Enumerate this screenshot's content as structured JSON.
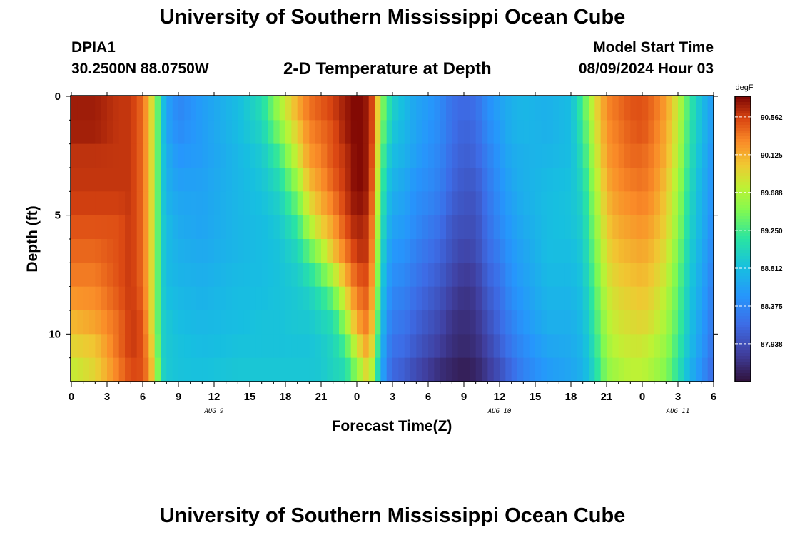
{
  "header": {
    "title": "University of Southern Mississippi Ocean Cube",
    "station": "DPIA1",
    "coords": "30.2500N  88.0750W",
    "subtitle": "2-D Temperature at Depth",
    "start_label": "Model Start Time",
    "start_value": "08/09/2024 Hour 03"
  },
  "footer": {
    "title": "University of Southern Mississippi Ocean Cube"
  },
  "chart_data": {
    "type": "heatmap",
    "title": "2-D Temperature at Depth",
    "xlabel": "Forecast Time(Z)",
    "ylabel": "Depth (ft)",
    "units": "degF",
    "x_range_hours": [
      0,
      54
    ],
    "y_range_ft": [
      0,
      12
    ],
    "y_reversed": true,
    "x_ticks": [
      "0",
      "3",
      "6",
      "9",
      "12",
      "15",
      "18",
      "21",
      "0",
      "3",
      "6",
      "9",
      "12",
      "15",
      "18",
      "21",
      "0",
      "3",
      "6"
    ],
    "y_ticks": [
      "0",
      "5",
      "10"
    ],
    "date_labels": [
      {
        "label": "AUG 9",
        "hour": 12
      },
      {
        "label": "AUG 10",
        "hour": 36
      },
      {
        "label": "AUG 11",
        "hour": 51
      }
    ],
    "colorbar": {
      "min": 87.5,
      "max": 90.8,
      "ticks": [
        "90.562",
        "90.125",
        "89.688",
        "89.250",
        "88.812",
        "88.375",
        "87.938"
      ],
      "tick_values": [
        90.562,
        90.125,
        89.688,
        89.25,
        88.812,
        88.375,
        87.938
      ]
    },
    "profile_hours": [
      0,
      2,
      4,
      5,
      6,
      6.5,
      7,
      7.5,
      8,
      9,
      11,
      14,
      16,
      17.5,
      19,
      20,
      21,
      22,
      23,
      24,
      25,
      25.5,
      26,
      26.5,
      27,
      28,
      29,
      30,
      31,
      32,
      33,
      34,
      35,
      36,
      37,
      38,
      40,
      42,
      43,
      44,
      45,
      46,
      47,
      48,
      49,
      50,
      51,
      52,
      53,
      54
    ],
    "profiles": [
      [
        90.7,
        90.7,
        90.6,
        90.6,
        90.5,
        90.4,
        90.3,
        90.1,
        89.9,
        89.7
      ],
      [
        90.7,
        90.7,
        90.6,
        90.6,
        90.5,
        90.4,
        90.3,
        90.2,
        90.0,
        89.9
      ],
      [
        90.6,
        90.6,
        90.6,
        90.6,
        90.5,
        90.5,
        90.5,
        90.4,
        90.4,
        90.3
      ],
      [
        90.6,
        90.6,
        90.6,
        90.6,
        90.6,
        90.6,
        90.6,
        90.6,
        90.6,
        90.5
      ],
      [
        90.4,
        90.4,
        90.4,
        90.4,
        90.4,
        90.4,
        90.4,
        90.5,
        90.5,
        90.5
      ],
      [
        90.1,
        90.1,
        90.1,
        90.1,
        90.1,
        90.1,
        90.1,
        90.1,
        90.2,
        90.3
      ],
      [
        89.7,
        89.7,
        89.7,
        89.7,
        89.7,
        89.7,
        89.7,
        89.7,
        89.8,
        89.9
      ],
      [
        89.0,
        89.0,
        89.0,
        89.0,
        89.0,
        89.0,
        89.0,
        89.0,
        89.0,
        89.1
      ],
      [
        88.6,
        88.6,
        88.7,
        88.7,
        88.8,
        88.8,
        88.8,
        88.9,
        88.9,
        88.9
      ],
      [
        88.35,
        88.4,
        88.5,
        88.6,
        88.65,
        88.7,
        88.75,
        88.8,
        88.85,
        88.85
      ],
      [
        88.55,
        88.55,
        88.55,
        88.6,
        88.6,
        88.65,
        88.7,
        88.75,
        88.8,
        88.85
      ],
      [
        88.8,
        88.8,
        88.75,
        88.75,
        88.75,
        88.75,
        88.8,
        88.8,
        88.85,
        88.9
      ],
      [
        89.1,
        89.0,
        88.9,
        88.85,
        88.8,
        88.8,
        88.8,
        88.85,
        88.85,
        88.9
      ],
      [
        89.7,
        89.5,
        89.2,
        89.0,
        88.9,
        88.85,
        88.85,
        88.85,
        88.85,
        88.9
      ],
      [
        90.2,
        90.0,
        89.8,
        89.5,
        89.2,
        89.0,
        88.9,
        88.9,
        88.85,
        88.9
      ],
      [
        90.4,
        90.3,
        90.2,
        90.0,
        89.7,
        89.3,
        89.0,
        88.9,
        88.85,
        88.9
      ],
      [
        90.5,
        90.4,
        90.3,
        90.2,
        90.0,
        89.6,
        89.2,
        89.0,
        88.9,
        88.9
      ],
      [
        90.6,
        90.5,
        90.5,
        90.4,
        90.2,
        90.0,
        89.5,
        89.1,
        89.0,
        89.0
      ],
      [
        90.7,
        90.7,
        90.6,
        90.6,
        90.5,
        90.3,
        90.0,
        89.6,
        89.2,
        89.0
      ],
      [
        90.8,
        90.8,
        90.8,
        90.8,
        90.7,
        90.6,
        90.4,
        90.2,
        89.8,
        89.4
      ],
      [
        90.7,
        90.7,
        90.7,
        90.7,
        90.6,
        90.6,
        90.5,
        90.4,
        90.2,
        89.9
      ],
      [
        90.4,
        90.4,
        90.3,
        90.2,
        90.1,
        90.0,
        89.9,
        89.8,
        89.6,
        89.3
      ],
      [
        89.6,
        89.5,
        89.4,
        89.3,
        89.2,
        89.1,
        89.0,
        88.9,
        88.8,
        88.7
      ],
      [
        89.3,
        89.2,
        89.0,
        88.9,
        88.8,
        88.7,
        88.6,
        88.5,
        88.4,
        88.3
      ],
      [
        89.0,
        88.9,
        88.8,
        88.7,
        88.6,
        88.5,
        88.4,
        88.3,
        88.2,
        88.1
      ],
      [
        88.8,
        88.75,
        88.7,
        88.6,
        88.55,
        88.45,
        88.35,
        88.25,
        88.15,
        88.0
      ],
      [
        88.6,
        88.6,
        88.55,
        88.45,
        88.4,
        88.3,
        88.2,
        88.1,
        88.0,
        87.85
      ],
      [
        88.55,
        88.5,
        88.45,
        88.4,
        88.3,
        88.2,
        88.1,
        88.0,
        87.9,
        87.75
      ],
      [
        88.4,
        88.4,
        88.35,
        88.3,
        88.2,
        88.1,
        88.0,
        87.9,
        87.8,
        87.65
      ],
      [
        88.2,
        88.2,
        88.15,
        88.1,
        88.0,
        87.95,
        87.85,
        87.75,
        87.7,
        87.6
      ],
      [
        88.15,
        88.1,
        88.05,
        88.0,
        87.95,
        87.85,
        87.75,
        87.7,
        87.65,
        87.55
      ],
      [
        88.2,
        88.15,
        88.1,
        88.0,
        87.95,
        87.9,
        87.8,
        87.75,
        87.7,
        87.6
      ],
      [
        88.45,
        88.4,
        88.3,
        88.25,
        88.2,
        88.15,
        88.05,
        87.95,
        87.85,
        87.75
      ],
      [
        88.6,
        88.55,
        88.5,
        88.45,
        88.4,
        88.3,
        88.2,
        88.15,
        88.05,
        87.9
      ],
      [
        88.7,
        88.7,
        88.65,
        88.6,
        88.55,
        88.5,
        88.45,
        88.35,
        88.25,
        88.1
      ],
      [
        88.75,
        88.75,
        88.7,
        88.7,
        88.65,
        88.6,
        88.55,
        88.5,
        88.4,
        88.3
      ],
      [
        88.7,
        88.7,
        88.75,
        88.8,
        88.8,
        88.8,
        88.75,
        88.7,
        88.6,
        88.5
      ],
      [
        88.8,
        88.8,
        88.8,
        88.85,
        88.85,
        88.8,
        88.75,
        88.7,
        88.65,
        88.6
      ],
      [
        89.3,
        89.2,
        89.1,
        89.0,
        88.95,
        88.9,
        88.85,
        88.8,
        88.75,
        88.7
      ],
      [
        89.9,
        89.8,
        89.7,
        89.6,
        89.5,
        89.4,
        89.3,
        89.2,
        89.1,
        89.0
      ],
      [
        90.3,
        90.25,
        90.2,
        90.1,
        90.0,
        89.9,
        89.8,
        89.7,
        89.6,
        89.5
      ],
      [
        90.4,
        90.35,
        90.3,
        90.25,
        90.15,
        90.05,
        89.95,
        89.85,
        89.75,
        89.6
      ],
      [
        90.5,
        90.45,
        90.4,
        90.3,
        90.2,
        90.1,
        90.0,
        89.9,
        89.8,
        89.7
      ],
      [
        90.5,
        90.5,
        90.4,
        90.35,
        90.25,
        90.15,
        90.05,
        89.95,
        89.8,
        89.7
      ],
      [
        90.4,
        90.35,
        90.3,
        90.25,
        90.15,
        90.05,
        89.95,
        89.85,
        89.7,
        89.6
      ],
      [
        90.2,
        90.15,
        90.1,
        90.0,
        89.95,
        89.85,
        89.75,
        89.65,
        89.55,
        89.45
      ],
      [
        89.8,
        89.75,
        89.7,
        89.6,
        89.55,
        89.45,
        89.35,
        89.3,
        89.2,
        89.1
      ],
      [
        89.2,
        89.15,
        89.1,
        89.05,
        89.0,
        88.95,
        88.9,
        88.85,
        88.8,
        88.7
      ],
      [
        88.8,
        88.8,
        88.75,
        88.7,
        88.7,
        88.65,
        88.6,
        88.55,
        88.5,
        88.4
      ],
      [
        88.5,
        88.5,
        88.45,
        88.45,
        88.4,
        88.35,
        88.3,
        88.25,
        88.2,
        88.1
      ]
    ]
  }
}
